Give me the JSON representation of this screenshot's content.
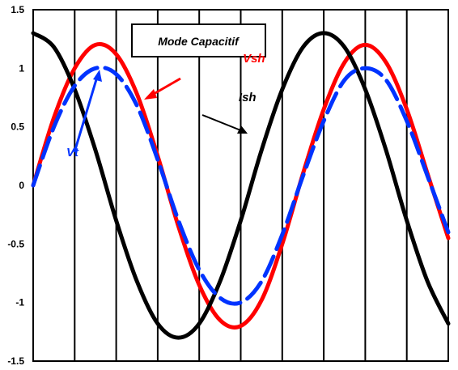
{
  "chart_data": {
    "type": "line",
    "title": "Mode Capacitif",
    "xlabel": "",
    "ylabel": "",
    "ylim": [
      -1.5,
      1.5
    ],
    "xlim": [
      0,
      10
    ],
    "yticks": [
      "1.5",
      "1",
      "0.5",
      "0",
      "-0.5",
      "-1",
      "-1.5"
    ],
    "ytick_values": [
      1.5,
      1,
      0.5,
      0,
      -0.5,
      -1,
      -1.5
    ],
    "grid": "vertical",
    "vertical_grid_x": [
      1,
      2,
      3,
      4,
      5,
      6,
      7,
      8,
      9,
      10
    ],
    "series": [
      {
        "name": "Ish",
        "color": "#000000",
        "style": "solid",
        "x": [
          0,
          0.5,
          1,
          1.5,
          2,
          2.5,
          3,
          3.5,
          4,
          4.5,
          5,
          5.5,
          6,
          6.5,
          7,
          7.5,
          8,
          8.5,
          9,
          9.5,
          10
        ],
        "values": [
          1.3,
          1.18,
          0.82,
          0.3,
          -0.3,
          -0.82,
          -1.18,
          -1.3,
          -1.18,
          -0.82,
          -0.3,
          0.3,
          0.82,
          1.18,
          1.3,
          1.18,
          0.82,
          0.3,
          -0.3,
          -0.82,
          -1.18
        ]
      },
      {
        "name": "Vsh",
        "color": "#ff0000",
        "style": "solid",
        "x": [
          0,
          0.5,
          1,
          1.5,
          2,
          2.5,
          3,
          3.5,
          4,
          4.5,
          5,
          5.5,
          6,
          6.5,
          7,
          7.5,
          8,
          8.5,
          9,
          9.5,
          10
        ],
        "values": [
          0,
          0.58,
          1.0,
          1.2,
          1.12,
          0.78,
          0.25,
          -0.35,
          -0.85,
          -1.15,
          -1.2,
          -0.98,
          -0.5,
          0.1,
          0.65,
          1.05,
          1.2,
          1.05,
          0.65,
          0.1,
          -0.45
        ]
      },
      {
        "name": "Vt",
        "color": "#0033ff",
        "style": "dashed",
        "x": [
          0,
          0.5,
          1,
          1.5,
          2,
          2.5,
          3,
          3.5,
          4,
          4.5,
          5,
          5.5,
          6,
          6.5,
          7,
          7.5,
          8,
          8.5,
          9,
          9.5,
          10
        ],
        "values": [
          0,
          0.5,
          0.85,
          1.0,
          0.95,
          0.68,
          0.22,
          -0.3,
          -0.72,
          -0.96,
          -1.0,
          -0.82,
          -0.42,
          0.08,
          0.55,
          0.9,
          1.0,
          0.9,
          0.55,
          0.08,
          -0.4
        ]
      }
    ],
    "annotations": [
      {
        "text": "Vsh",
        "color": "#ff0000",
        "x": 5.05,
        "y": 1.05
      },
      {
        "text": "Ish",
        "color": "#000000",
        "x": 4.95,
        "y": 0.72
      },
      {
        "text": "Vt",
        "color": "#0033ff",
        "x": 0.8,
        "y": 0.25
      }
    ]
  }
}
